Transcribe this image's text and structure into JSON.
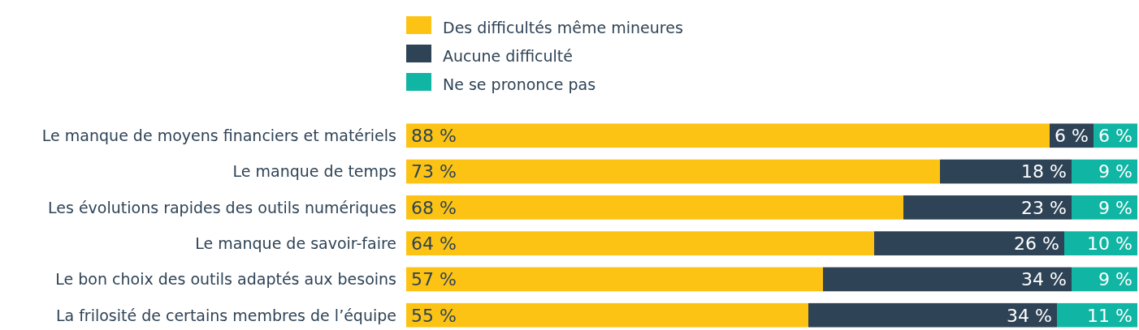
{
  "chart_data": {
    "type": "bar",
    "orientation": "horizontal",
    "stacked": true,
    "legend": "top",
    "categories": [
      "Le manque de moyens financiers et matériels",
      "Le manque de temps",
      "Les évolutions rapides des outils numériques",
      "Le manque de savoir-faire",
      "Le bon choix des outils adaptés aux besoins",
      "La frilosité de certains membres de l’équipe"
    ],
    "xlim": [
      0,
      100
    ],
    "tick_labels": "y",
    "series": [
      {
        "name": "Des difficultés même mineures",
        "color": "#fcc314",
        "values": [
          88,
          73,
          68,
          64,
          57,
          55
        ],
        "value_labels": [
          "88 %",
          "73 %",
          "68 %",
          "64 %",
          "57 %",
          "55 %"
        ]
      },
      {
        "name": "Aucune difficulté",
        "color": "#2e4356",
        "values": [
          6,
          18,
          23,
          26,
          34,
          34
        ],
        "value_labels": [
          "6 %",
          "18 %",
          "23 %",
          "26 %",
          "34 %",
          "34 %"
        ]
      },
      {
        "name": "Ne se prononce pas",
        "color": "#10b5a3",
        "values": [
          6,
          9,
          9,
          10,
          9,
          11
        ],
        "value_labels": [
          "6 %",
          "9 %",
          "9 %",
          "10 %",
          "9 %",
          "11 %"
        ]
      }
    ]
  }
}
